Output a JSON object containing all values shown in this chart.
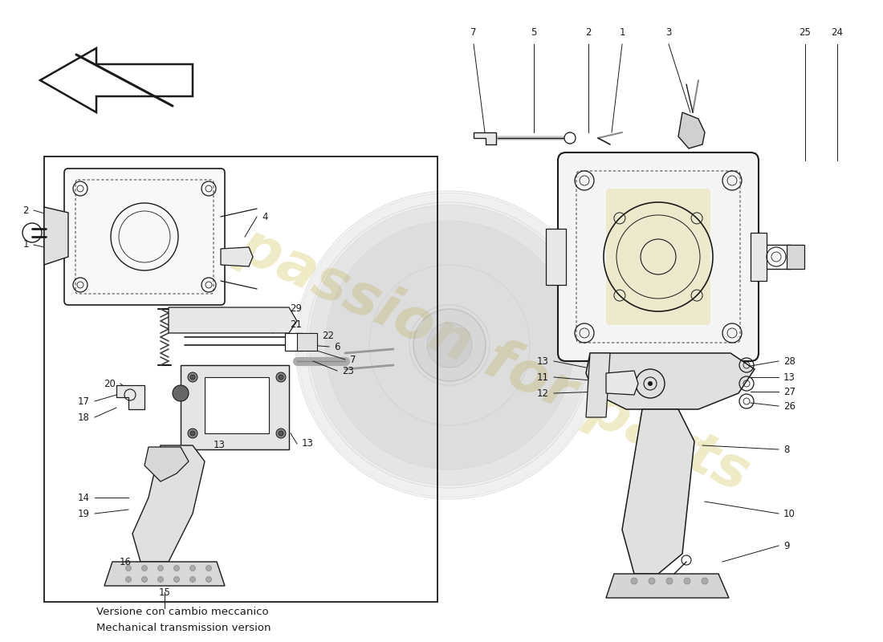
{
  "background_color": "#ffffff",
  "line_color": "#1a1a1a",
  "watermark_color": "#c8b830",
  "watermark_text": "A passion for parts",
  "watermark_alpha": 0.28,
  "label_fontsize": 8.5,
  "subtitle_italian": "Versione con cambio meccanico",
  "subtitle_english": "Mechanical transmission version",
  "subtitle_fontsize": 9.5,
  "arrow_color": "#ffffff",
  "component_color": "#f0f0f0",
  "component_edge": "#1a1a1a",
  "booster_gray": "#d0d0d0",
  "fig_width": 11.0,
  "fig_height": 8.0,
  "dpi": 100,
  "xlim": [
    0,
    1100
  ],
  "ylim": [
    0,
    800
  ]
}
